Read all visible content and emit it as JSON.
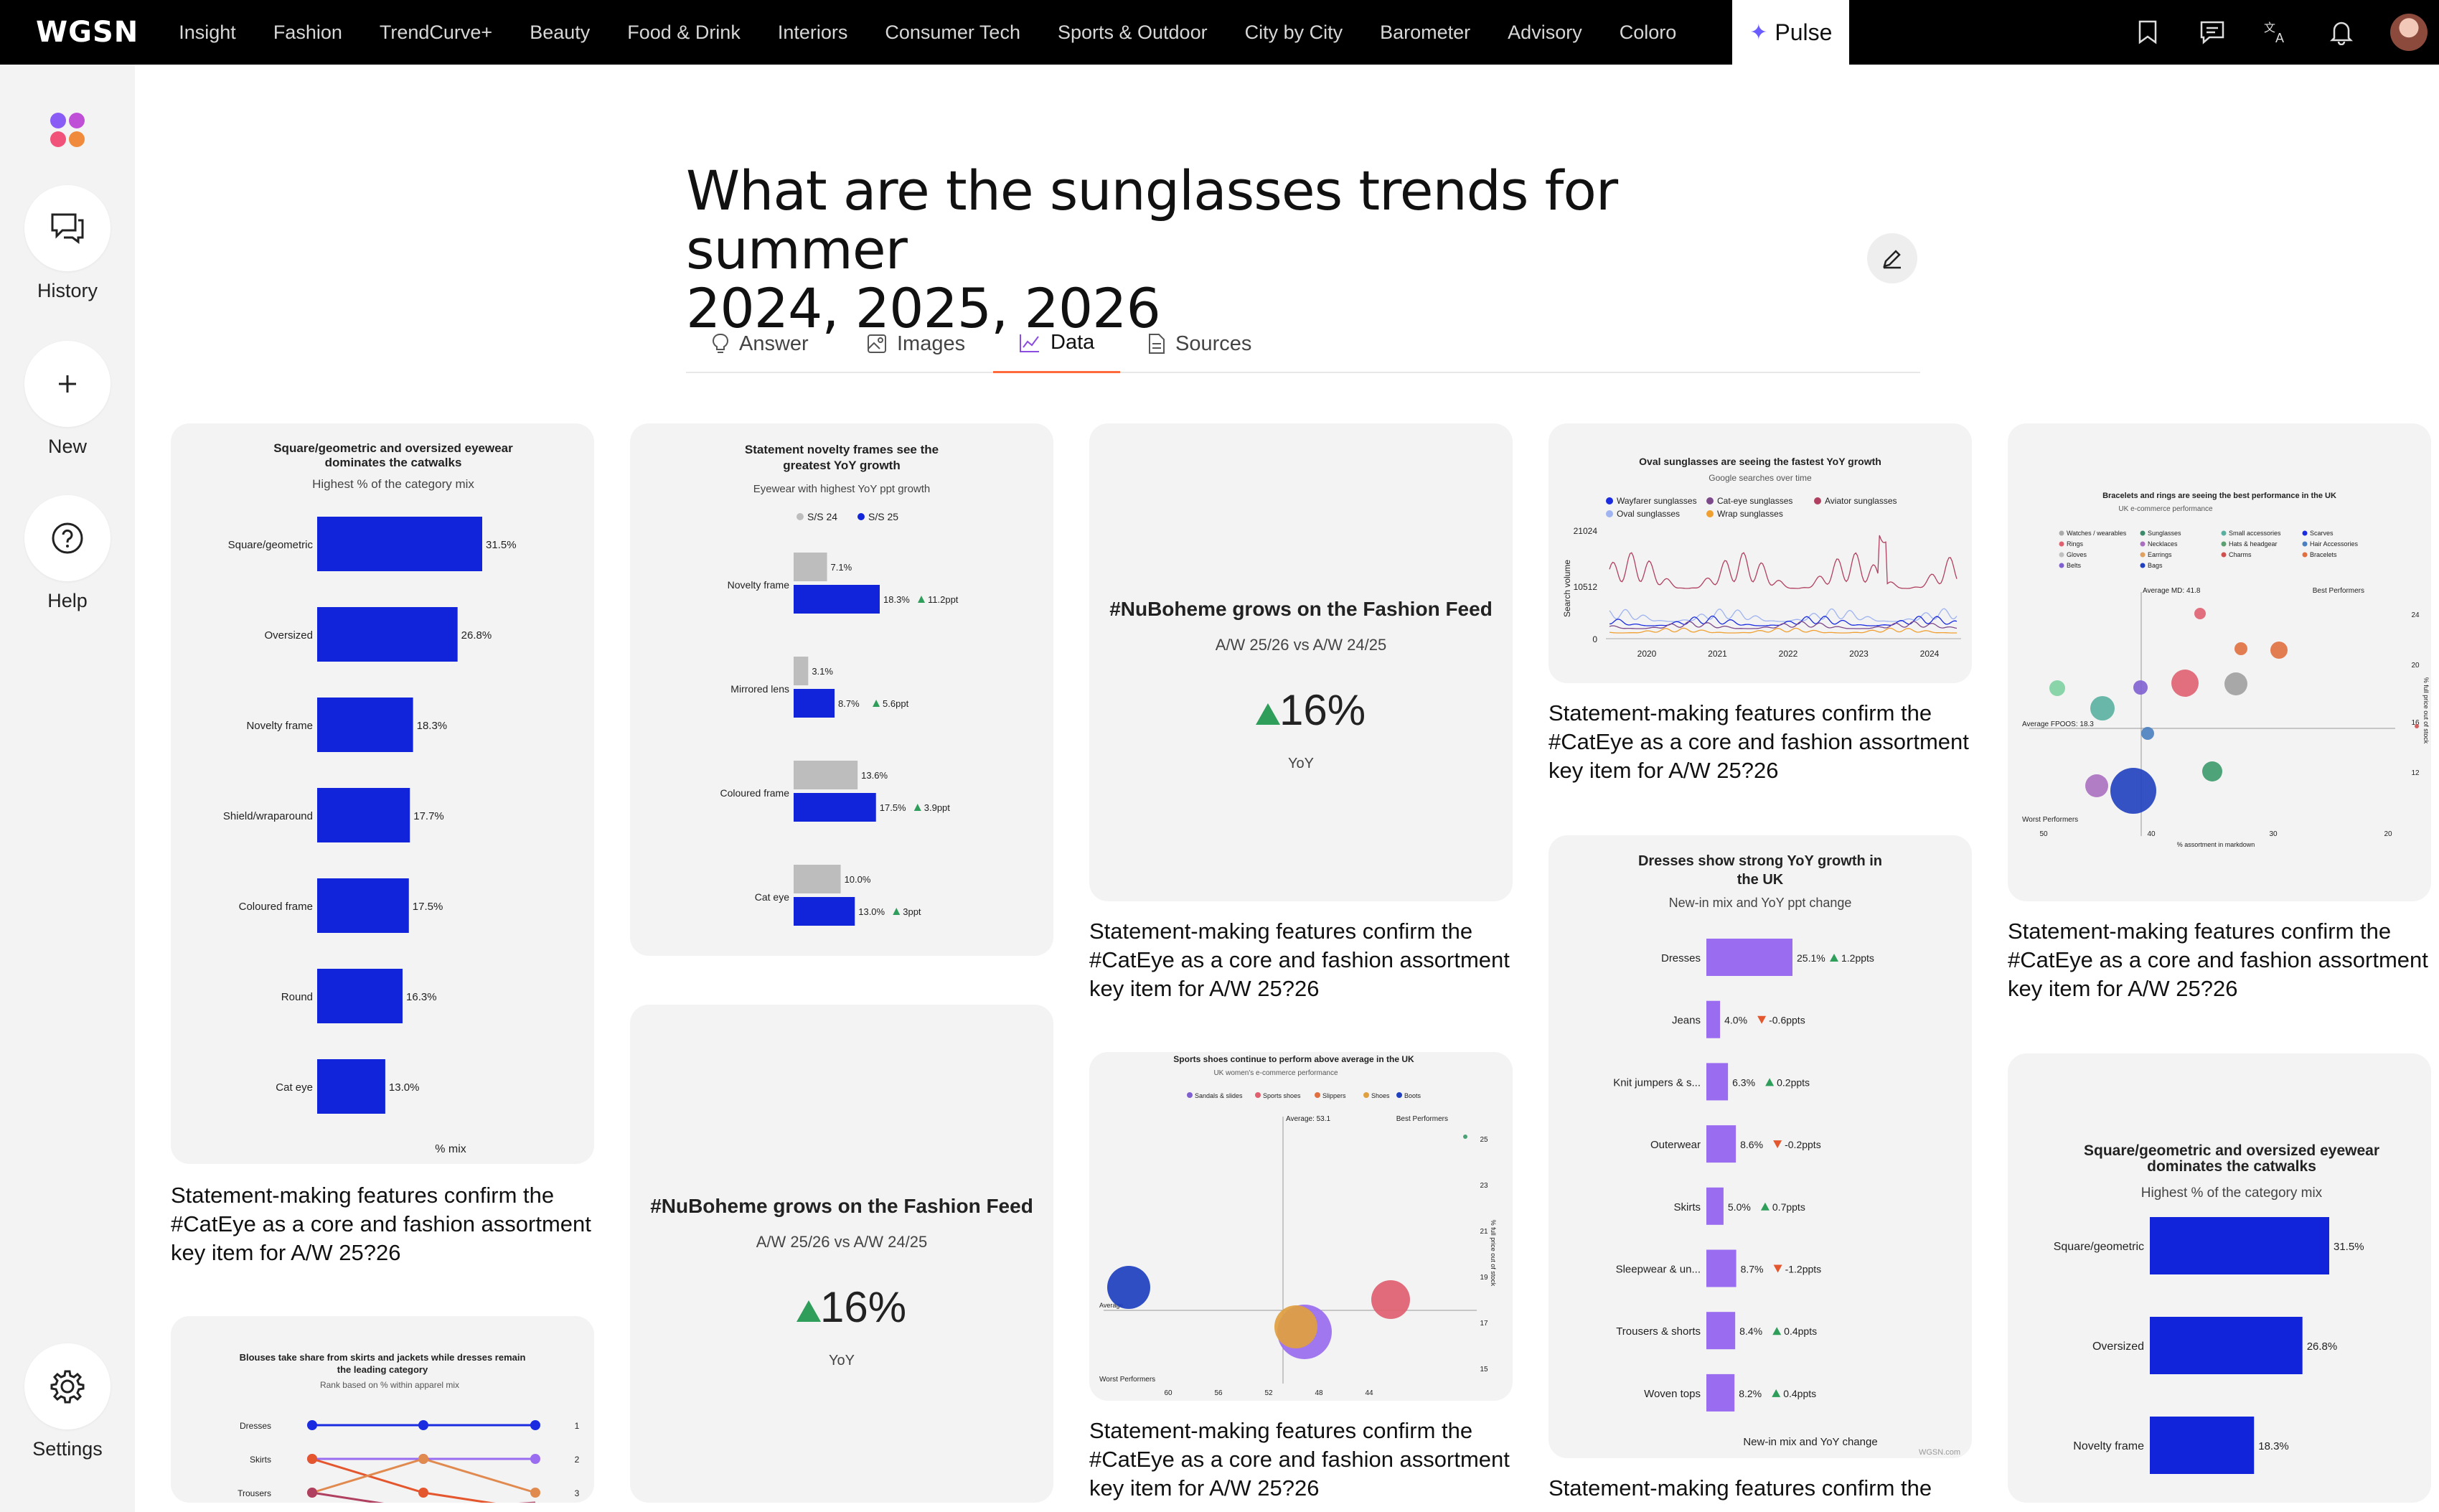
{
  "nav": {
    "logo": "WGSN",
    "items": [
      "Insight",
      "Fashion",
      "TrendCurve+",
      "Beauty",
      "Food & Drink",
      "Interiors",
      "Consumer Tech",
      "Sports & Outdoor",
      "City by City",
      "Barometer",
      "Advisory",
      "Coloro"
    ],
    "active": "Pulse",
    "icons": [
      "bookmark-icon",
      "chat-icon",
      "translate-icon",
      "bell-icon",
      "user-avatar"
    ]
  },
  "sidebar": {
    "history": "History",
    "new": "New",
    "help": "Help",
    "settings": "Settings"
  },
  "page": {
    "title_line1": "What are the sunglasses trends for summer",
    "title_line2": "2024, 2025, 2026",
    "tabs": [
      "Answer",
      "Images",
      "Data",
      "Sources"
    ],
    "active_tab": "Data"
  },
  "captions": {
    "cateye": "Statement-making features confirm the #CatEye as a core and fashion assortment key item for A/W 25?26",
    "cateye_short": "Statement-making features confirm the"
  },
  "colors": {
    "blue": "#1224d9",
    "grey": "#bdbdbd",
    "purple": "#9a6cf0",
    "green": "#2e9e5a",
    "orange": "#e4572e",
    "accent": "#ff6a3d"
  },
  "chart_data": [
    {
      "id": "eyewear-mix",
      "type": "bar",
      "title": "Square/geometric and oversized eyewear dominates the catwalks",
      "subtitle": "Highest % of the category mix",
      "xlabel": "% mix",
      "categories": [
        "Square/geometric",
        "Oversized",
        "Novelty frame",
        "Shield/wraparound",
        "Coloured frame",
        "Round",
        "Cat eye"
      ],
      "values": [
        31.5,
        26.8,
        18.3,
        17.7,
        17.5,
        16.3,
        13.0
      ],
      "labels": [
        "31.5%",
        "26.8%",
        "18.3%",
        "17.7%",
        "17.5%",
        "16.3%",
        "13.0%"
      ]
    },
    {
      "id": "novelty-growth",
      "type": "bar",
      "title": "Statement novelty frames see the greatest YoY growth",
      "subtitle": "Eyewear with highest YoY ppt growth",
      "legend": [
        "S/S 24",
        "S/S 25"
      ],
      "categories": [
        "Novelty frame",
        "Mirrored lens",
        "Coloured frame",
        "Cat eye"
      ],
      "series": [
        {
          "name": "S/S 24",
          "values": [
            7.1,
            3.1,
            13.6,
            10.0
          ],
          "labels": [
            "7.1%",
            "3.1%",
            "13.6%",
            "10.0%"
          ]
        },
        {
          "name": "S/S 25",
          "values": [
            18.3,
            8.7,
            17.5,
            13.0
          ],
          "labels": [
            "18.3%",
            "8.7%",
            "17.5%",
            "13.0%"
          ]
        }
      ],
      "changes": [
        "11.2ppt",
        "5.6ppt",
        "3.9ppt",
        "3ppt"
      ]
    },
    {
      "id": "nuboheme-1",
      "type": "table",
      "title": "#NuBoheme grows on the Fashion Feed",
      "subtitle": "A/W 25/26 vs A/W 24/25",
      "value": "16%",
      "unit": "YoY"
    },
    {
      "id": "oval-sunglasses",
      "type": "line",
      "title": "Oval sunglasses are seeing the fastest YoY growth",
      "subtitle": "Google searches over time",
      "ylabel": "Search volume",
      "legend": [
        "Wayfarer sunglasses",
        "Cat-eye sunglasses",
        "Aviator sunglasses",
        "Oval sunglasses",
        "Wrap sunglasses"
      ],
      "y_ticks": [
        "21024",
        "10512",
        "0"
      ],
      "x_ticks": [
        "2020",
        "2021",
        "2022",
        "2023",
        "2024"
      ]
    },
    {
      "id": "bracelets-rings",
      "type": "scatter",
      "title": "Bracelets and rings are seeing the best performance in the UK",
      "subtitle": "UK e-commerce performance",
      "legend": [
        "Watches / wearables",
        "Sunglasses",
        "Small accessories",
        "Scarves",
        "Rings",
        "Necklaces",
        "Hats & headgear",
        "Hair Accessories",
        "Gloves",
        "Earrings",
        "Charms",
        "Bracelets",
        "Belts",
        "Bags"
      ],
      "annotations": [
        "Average MD: 41.8",
        "Best Performers",
        "Average FPOOS: 18.3",
        "Worst Performers"
      ],
      "x_ticks": [
        "50",
        "40",
        "30",
        "20"
      ],
      "y_ticks": [
        "24",
        "20",
        "16",
        "12"
      ],
      "xlabel": "% assortment in markdown",
      "ylabel": "% full price out of stock"
    },
    {
      "id": "dresses-growth",
      "type": "bar",
      "title": "Dresses show strong YoY growth in the UK",
      "subtitle": "New-in mix and YoY ppt change",
      "xlabel": "New-in mix and YoY change",
      "footer": "WGSN.com",
      "categories": [
        "Dresses",
        "Jeans",
        "Knit jumpers & s...",
        "Outerwear",
        "Skirts",
        "Sleepwear & un...",
        "Trousers & shorts",
        "Woven tops"
      ],
      "values": [
        25.1,
        4.0,
        6.3,
        8.6,
        5.0,
        8.7,
        8.4,
        8.2
      ],
      "labels": [
        "25.1%",
        "4.0%",
        "6.3%",
        "8.6%",
        "5.0%",
        "8.7%",
        "8.4%",
        "8.2%"
      ],
      "changes": [
        "1.2ppts",
        "-0.6ppts",
        "0.2ppts",
        "-0.2ppts",
        "0.7ppts",
        "-1.2ppts",
        "0.4ppts",
        "0.4ppts"
      ],
      "directions": [
        "up",
        "down",
        "up",
        "down",
        "up",
        "down",
        "up",
        "up"
      ]
    },
    {
      "id": "blouses",
      "type": "line",
      "title": "Blouses take share from skirts and jackets while dresses remain the leading category",
      "subtitle": "Rank based on % within apparel mix",
      "categories": [
        "Dresses",
        "Skirts",
        "Trousers"
      ],
      "ranks": [
        "1",
        "2",
        "3"
      ]
    },
    {
      "id": "nuboheme-2",
      "type": "table",
      "title": "#NuBoheme grows on the Fashion Feed",
      "subtitle": "A/W 25/26 vs A/W 24/25",
      "value": "16%",
      "unit": "YoY"
    },
    {
      "id": "sports-shoes",
      "type": "scatter",
      "title": "Sports shoes continue to perform above average in the UK",
      "subtitle": "UK women's e-commerce performance",
      "legend": [
        "Sandals & slides",
        "Sports shoes",
        "Slippers",
        "Shoes",
        "Boots"
      ],
      "annotations": [
        "Average: 53.1",
        "Best Performers",
        "Average",
        "Worst Performers"
      ],
      "x_ticks": [
        "60",
        "56",
        "52",
        "48",
        "44"
      ],
      "y_ticks": [
        "25",
        "23",
        "21",
        "19",
        "17",
        "15"
      ],
      "ylabel": "% full price out of stock"
    },
    {
      "id": "eyewear-mix-2",
      "type": "bar",
      "title": "Square/geometric and oversized eyewear dominates the catwalks",
      "subtitle": "Highest % of the category mix",
      "categories": [
        "Square/geometric",
        "Oversized",
        "Novelty frame"
      ],
      "values": [
        31.5,
        26.8,
        18.3
      ],
      "labels": [
        "31.5%",
        "26.8%",
        "18.3%"
      ]
    }
  ]
}
